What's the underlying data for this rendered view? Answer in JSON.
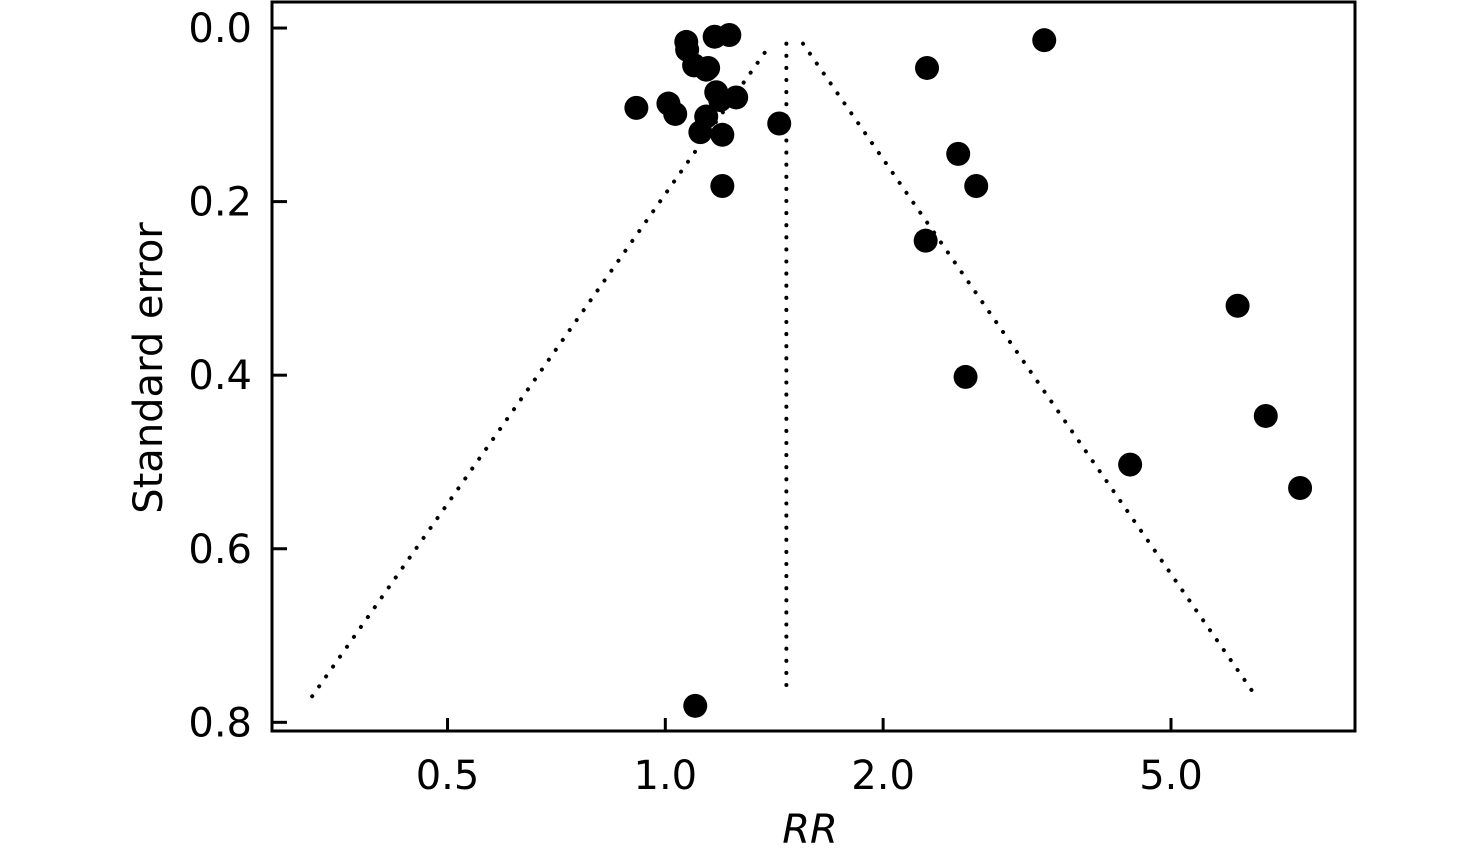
{
  "chart_data": {
    "type": "scatter",
    "xlabel": "RR",
    "ylabel": "Standard error",
    "xscale": "log",
    "yinverted": true,
    "xlim": [
      0.286,
      8.98
    ],
    "ylim": [
      -0.03,
      0.81
    ],
    "xticks": [
      0.5,
      {
        "value": 1,
        "label": "1.0"
      },
      {
        "value": 2,
        "label": "2.0"
      },
      {
        "value": 5,
        "label": "5.0"
      }
    ],
    "yticks": [
      {
        "value": 0,
        "label": "0.0"
      },
      0.2,
      0.4,
      0.6,
      0.8
    ],
    "series": [
      {
        "color": "#000000",
        "x": [
          1.069,
          1.17,
          1.226,
          1.072,
          1.096,
          1.139,
          1.146,
          1.176,
          1.253,
          1.191,
          0.912,
          1.01,
          1.032,
          1.139,
          1.118,
          1.199,
          1.437,
          1.199,
          1.1,
          2.3,
          3.34,
          2.54,
          2.69,
          2.29,
          2.6,
          6.18,
          6.76,
          7.54,
          4.39
        ],
        "values": [
          0.016,
          0.01,
          0.008,
          0.025,
          0.043,
          0.048,
          0.046,
          0.074,
          0.08,
          0.083,
          0.092,
          0.087,
          0.099,
          0.102,
          0.12,
          0.123,
          0.11,
          0.182,
          0.781,
          0.046,
          0.014,
          0.145,
          0.182,
          0.245,
          0.402,
          0.32,
          0.447,
          0.53,
          0.503
        ]
      }
    ],
    "lines": [
      {
        "color": "#000000",
        "x": [
          0.325,
          1.4
        ],
        "values": [
          0.77,
          0.018
        ]
      },
      {
        "color": "#000000",
        "x": [
          1.47,
          1.47
        ],
        "values": [
          0.018,
          0.77
        ]
      },
      {
        "color": "#000000",
        "x": [
          1.55,
          6.55
        ],
        "values": [
          0.018,
          0.77
        ]
      }
    ]
  }
}
